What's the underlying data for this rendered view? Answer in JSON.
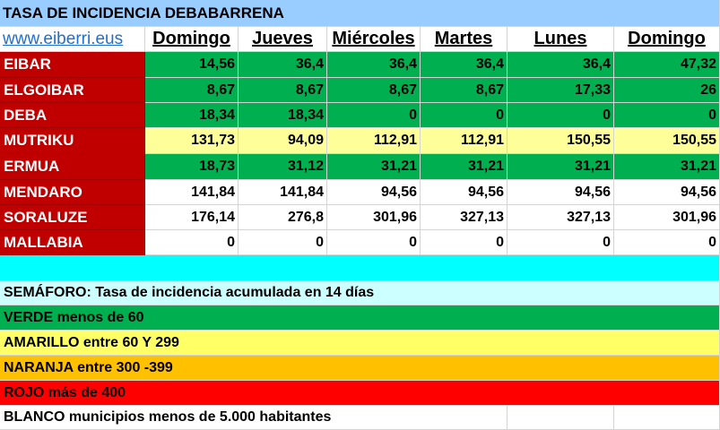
{
  "title": "TASA DE INCIDENCIA DEBABARRENA",
  "website": "www.eiberri.eus",
  "day_headers": [
    "Domingo",
    "Jueves",
    "Miércoles",
    "Martes",
    "Lunes",
    "Domingo"
  ],
  "towns": [
    {
      "name": "EIBAR",
      "values": [
        "14,56",
        "36,4",
        "36,4",
        "36,4",
        "36,4",
        "47,32"
      ],
      "row_color": "green"
    },
    {
      "name": "ELGOIBAR",
      "values": [
        "8,67",
        "8,67",
        "8,67",
        "8,67",
        "17,33",
        "26"
      ],
      "row_color": "green"
    },
    {
      "name": "DEBA",
      "values": [
        "18,34",
        "18,34",
        "0",
        "0",
        "0",
        "0"
      ],
      "row_color": "green"
    },
    {
      "name": "MUTRIKU",
      "values": [
        "131,73",
        "94,09",
        "112,91",
        "112,91",
        "150,55",
        "150,55"
      ],
      "row_color": "yellow"
    },
    {
      "name": "ERMUA",
      "values": [
        "18,73",
        "31,12",
        "31,21",
        "31,21",
        "31,21",
        "31,21"
      ],
      "row_color": "green"
    },
    {
      "name": "MENDARO",
      "values": [
        "141,84",
        "141,84",
        "94,56",
        "94,56",
        "94,56",
        "94,56"
      ],
      "row_color": "white"
    },
    {
      "name": "SORALUZE",
      "values": [
        "176,14",
        "276,8",
        "301,96",
        "327,13",
        "327,13",
        "301,96"
      ],
      "row_color": "white"
    },
    {
      "name": "MALLABIA",
      "values": [
        "0",
        "0",
        "0",
        "0",
        "0",
        "0"
      ],
      "row_color": "white"
    }
  ],
  "legend": {
    "heading": "SEMÁFORO:  Tasa de incidencia acumulada en 14 días",
    "green": "VERDE menos de 60",
    "yellow": "AMARILLO entre 60 Y 299",
    "orange": "NARANJA entre 300 -399",
    "red": "ROJO más de 400",
    "white": "BLANCO municipios menos de 5.000 habitantes"
  },
  "colors": {
    "title_bg": "#99ccff",
    "town_name_bg": "#c00000",
    "green": "#00b050",
    "yellow": "#ffff99",
    "separator": "#00ffff",
    "orange": "#ffc000",
    "red": "#ff0000"
  }
}
